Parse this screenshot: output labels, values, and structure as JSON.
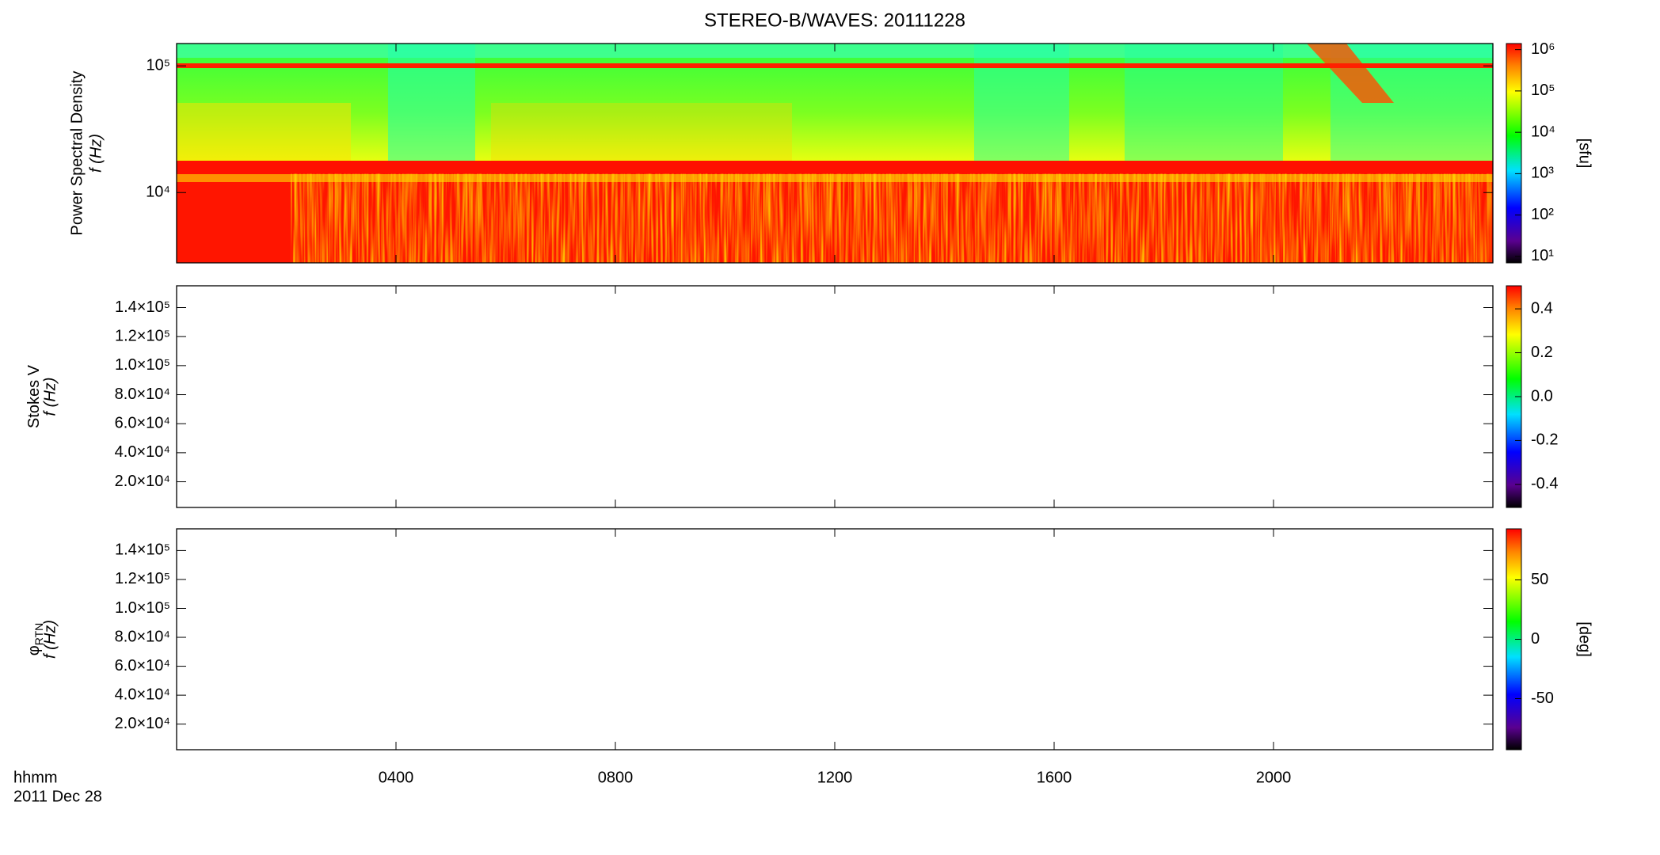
{
  "chart_data": [
    {
      "type": "heatmap",
      "title": "STEREO-B/WAVES: 20111228",
      "ylabel": "Power Spectral Density",
      "ylabel2": "f (Hz)",
      "ylog": true,
      "ylim": [
        2790,
        150000
      ],
      "yticks": [
        {
          "value": 10000,
          "label": "10⁴"
        },
        {
          "value": 100000,
          "label": "10⁵"
        }
      ],
      "colorbar": {
        "log": true,
        "lim": [
          7,
          1400000
        ],
        "label": "[sfu]",
        "ticks": [
          {
            "value": 10,
            "label": "10¹"
          },
          {
            "value": 100,
            "label": "10²"
          },
          {
            "value": 1000,
            "label": "10³"
          },
          {
            "value": 10000,
            "label": "10⁴"
          },
          {
            "value": 100000,
            "label": "10⁵"
          },
          {
            "value": 1000000,
            "label": "10⁶"
          }
        ]
      }
    },
    {
      "type": "heatmap",
      "ylabel": "Stokes V",
      "ylabel2": "f (Hz)",
      "ylog": false,
      "ylim": [
        2300,
        155000
      ],
      "yticks": [
        {
          "value": 20000,
          "label": "2.0×10⁴"
        },
        {
          "value": 40000,
          "label": "4.0×10⁴"
        },
        {
          "value": 60000,
          "label": "6.0×10⁴"
        },
        {
          "value": 80000,
          "label": "8.0×10⁴"
        },
        {
          "value": 100000,
          "label": "1.0×10⁵"
        },
        {
          "value": 120000,
          "label": "1.2×10⁵"
        },
        {
          "value": 140000,
          "label": "1.4×10⁵"
        }
      ],
      "colorbar": {
        "log": false,
        "lim": [
          -0.505,
          0.505
        ],
        "ticks": [
          {
            "value": -0.4,
            "label": "-0.4"
          },
          {
            "value": -0.2,
            "label": "-0.2"
          },
          {
            "value": 0,
            "label": "0.0"
          },
          0.2,
          0.4
        ]
      }
    },
    {
      "type": "heatmap",
      "ylabel": "φ",
      "ylabel_sub": "RTN",
      "ylabel2": "f (Hz)",
      "ylog": false,
      "ylim": [
        2300,
        155000
      ],
      "yticks": [
        {
          "value": 20000,
          "label": "2.0×10⁴"
        },
        {
          "value": 40000,
          "label": "4.0×10⁴"
        },
        {
          "value": 60000,
          "label": "6.0×10⁴"
        },
        {
          "value": 80000,
          "label": "8.0×10⁴"
        },
        {
          "value": 100000,
          "label": "1.0×10⁵"
        },
        {
          "value": 120000,
          "label": "1.2×10⁵"
        },
        {
          "value": 140000,
          "label": "1.4×10⁵"
        }
      ],
      "colorbar": {
        "log": false,
        "lim": [
          -93,
          93
        ],
        "label": "[deg]",
        "ticks": [
          -50,
          0,
          50
        ]
      },
      "xlabel": "hhmm",
      "date": "2011 Dec 28",
      "xlim": [
        0,
        24
      ],
      "xticks": [
        {
          "value": 4,
          "label": "0400"
        },
        {
          "value": 8,
          "label": "0800"
        },
        {
          "value": 12,
          "label": "1200"
        },
        {
          "value": 16,
          "label": "1600"
        },
        {
          "value": 20,
          "label": "2000"
        }
      ]
    }
  ]
}
